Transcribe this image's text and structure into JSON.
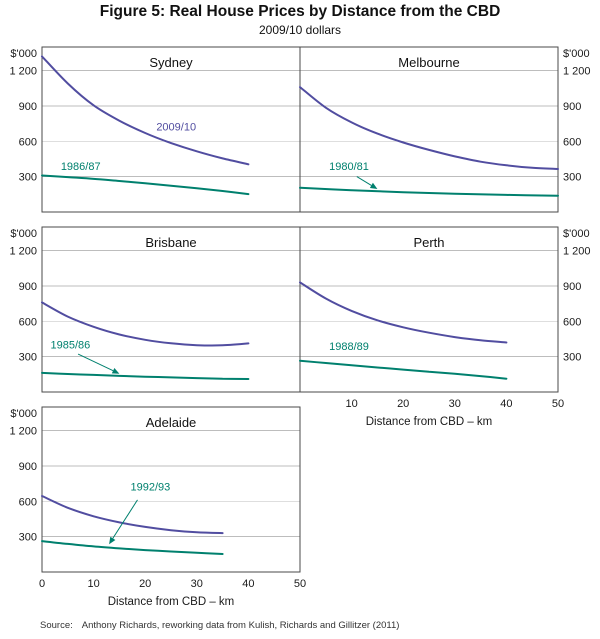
{
  "figure": {
    "title": "Figure 5: Real House Prices by Distance from the CBD",
    "subtitle": "2009/10 dollars",
    "source_label": "Source:",
    "source_text": "Anthony Richards, reworking data from Kulish, Richards and Gillitzer (2011)"
  },
  "chart_data": {
    "type": "line",
    "title": "Figure 5: Real House Prices by Distance from the CBD",
    "subtitle": "2009/10 dollars",
    "unit_label": "$'000",
    "x_axis_label": "Distance from CBD – km",
    "xlabel": "Distance from CBD – km",
    "ylabel": "$'000",
    "ylim": [
      0,
      1400
    ],
    "xlim": [
      0,
      50
    ],
    "grid": "horizontal-only",
    "yticks": [
      {
        "value": 1200,
        "label": "1 200"
      },
      {
        "value": 900,
        "label": "900"
      },
      {
        "value": 600,
        "label": "600"
      },
      {
        "value": 300,
        "label": "300"
      }
    ],
    "x_ticks": {
      "left": [
        {
          "value": 0,
          "label": "0"
        },
        {
          "value": 10,
          "label": "10"
        },
        {
          "value": 20,
          "label": "20"
        },
        {
          "value": 30,
          "label": "30"
        },
        {
          "value": 40,
          "label": "40"
        },
        {
          "value": 50,
          "label": "50"
        }
      ],
      "right": [
        {
          "value": 10,
          "label": "10"
        },
        {
          "value": 20,
          "label": "20"
        },
        {
          "value": 30,
          "label": "30"
        },
        {
          "value": 40,
          "label": "40"
        },
        {
          "value": 50,
          "label": "50"
        }
      ]
    },
    "colors": {
      "recent": "#514da0",
      "early": "#00806e",
      "grid": "#bdbdbd",
      "frame": "#4a4a4a"
    },
    "panels": [
      {
        "name": "Sydney",
        "col": "left",
        "row": 0,
        "series": [
          {
            "name": "2009/10",
            "color": "recent",
            "points": [
              [
                0,
                1320
              ],
              [
                5,
                1090
              ],
              [
                10,
                905
              ],
              [
                15,
                775
              ],
              [
                20,
                670
              ],
              [
                25,
                585
              ],
              [
                30,
                515
              ],
              [
                35,
                455
              ],
              [
                40,
                405
              ]
            ]
          },
          {
            "name": "1986/87",
            "color": "early",
            "points": [
              [
                0,
                310
              ],
              [
                5,
                296
              ],
              [
                10,
                281
              ],
              [
                15,
                263
              ],
              [
                20,
                244
              ],
              [
                25,
                223
              ],
              [
                30,
                201
              ],
              [
                35,
                178
              ],
              [
                40,
                152
              ]
            ]
          }
        ],
        "annotations": [
          {
            "text": "2009/10",
            "color": "recent",
            "x": 26,
            "y": 690
          },
          {
            "text": "1986/87",
            "color": "early",
            "x": 7.5,
            "y": 355
          }
        ]
      },
      {
        "name": "Melbourne",
        "col": "right",
        "row": 0,
        "series": [
          {
            "name": "2009/10",
            "color": "recent",
            "points": [
              [
                0,
                1060
              ],
              [
                5,
                885
              ],
              [
                10,
                760
              ],
              [
                15,
                665
              ],
              [
                20,
                590
              ],
              [
                25,
                527
              ],
              [
                30,
                472
              ],
              [
                35,
                427
              ],
              [
                40,
                396
              ],
              [
                45,
                375
              ],
              [
                50,
                365
              ]
            ]
          },
          {
            "name": "1980/81",
            "color": "early",
            "points": [
              [
                0,
                205
              ],
              [
                10,
                185
              ],
              [
                20,
                168
              ],
              [
                30,
                155
              ],
              [
                40,
                145
              ],
              [
                50,
                138
              ]
            ]
          }
        ],
        "annotations": [
          {
            "text": "1980/81",
            "color": "early",
            "x": 9.5,
            "y": 355,
            "arrow": {
              "from": [
                11,
                300
              ],
              "to": [
                15,
                195
              ]
            }
          }
        ]
      },
      {
        "name": "Brisbane",
        "col": "left",
        "row": 1,
        "series": [
          {
            "name": "2009/10",
            "color": "recent",
            "points": [
              [
                0,
                760
              ],
              [
                5,
                640
              ],
              [
                10,
                553
              ],
              [
                15,
                488
              ],
              [
                20,
                443
              ],
              [
                25,
                413
              ],
              [
                30,
                397
              ],
              [
                35,
                396
              ],
              [
                40,
                412
              ]
            ]
          },
          {
            "name": "1985/86",
            "color": "early",
            "points": [
              [
                0,
                162
              ],
              [
                5,
                153
              ],
              [
                10,
                145
              ],
              [
                15,
                137
              ],
              [
                20,
                130
              ],
              [
                25,
                124
              ],
              [
                30,
                118
              ],
              [
                35,
                113
              ],
              [
                40,
                110
              ]
            ]
          }
        ],
        "annotations": [
          {
            "text": "1985/86",
            "color": "early",
            "x": 5.5,
            "y": 370,
            "arrow": {
              "from": [
                7,
                322
              ],
              "to": [
                15,
                155
              ]
            }
          }
        ]
      },
      {
        "name": "Perth",
        "col": "right",
        "row": 1,
        "series": [
          {
            "name": "2009/10",
            "color": "recent",
            "points": [
              [
                0,
                930
              ],
              [
                5,
                793
              ],
              [
                10,
                688
              ],
              [
                15,
                608
              ],
              [
                20,
                549
              ],
              [
                25,
                503
              ],
              [
                30,
                466
              ],
              [
                35,
                439
              ],
              [
                40,
                420
              ]
            ]
          },
          {
            "name": "1988/89",
            "color": "early",
            "points": [
              [
                0,
                265
              ],
              [
                5,
                246
              ],
              [
                10,
                227
              ],
              [
                15,
                208
              ],
              [
                20,
                190
              ],
              [
                25,
                172
              ],
              [
                30,
                155
              ],
              [
                35,
                135
              ],
              [
                40,
                113
              ]
            ]
          }
        ],
        "annotations": [
          {
            "text": "1988/89",
            "color": "early",
            "x": 9.5,
            "y": 355
          }
        ]
      },
      {
        "name": "Adelaide",
        "col": "left",
        "row": 2,
        "series": [
          {
            "name": "2009/10",
            "color": "recent",
            "points": [
              [
                0,
                645
              ],
              [
                5,
                545
              ],
              [
                10,
                473
              ],
              [
                15,
                421
              ],
              [
                20,
                383
              ],
              [
                25,
                355
              ],
              [
                30,
                337
              ],
              [
                35,
                330
              ]
            ]
          },
          {
            "name": "1992/93",
            "color": "early",
            "points": [
              [
                0,
                262
              ],
              [
                5,
                238
              ],
              [
                10,
                217
              ],
              [
                15,
                200
              ],
              [
                20,
                186
              ],
              [
                25,
                174
              ],
              [
                30,
                163
              ],
              [
                35,
                153
              ]
            ]
          }
        ],
        "annotations": [
          {
            "text": "1992/93",
            "color": "early",
            "x": 21,
            "y": 690,
            "arrow": {
              "from": [
                18.5,
                612
              ],
              "to": [
                13,
                235
              ]
            }
          }
        ]
      }
    ]
  }
}
